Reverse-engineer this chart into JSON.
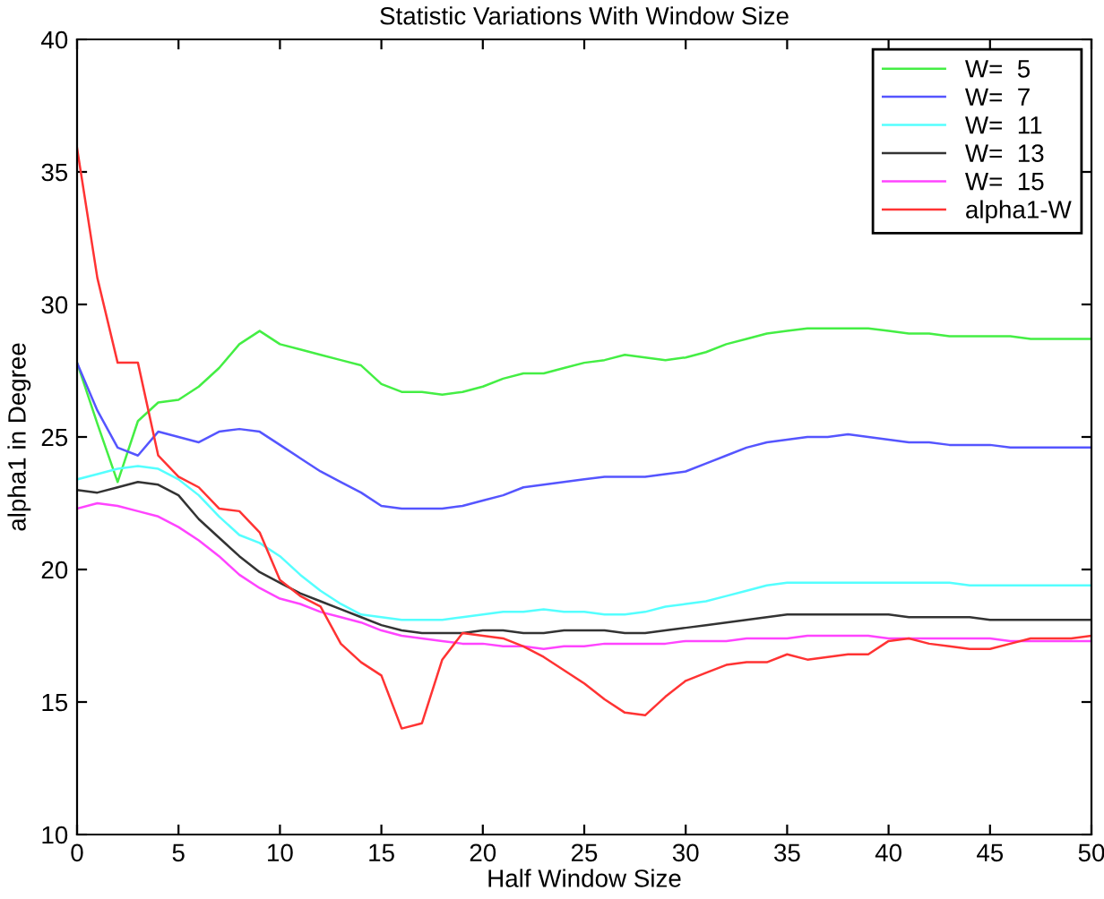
{
  "chart_data": {
    "type": "line",
    "title": "Statistic Variations With Window Size",
    "xlabel": "Half Window Size",
    "ylabel": "alpha1 in Degree",
    "x": [
      0,
      1,
      2,
      3,
      4,
      5,
      6,
      7,
      8,
      9,
      10,
      11,
      12,
      13,
      14,
      15,
      16,
      17,
      18,
      19,
      20,
      21,
      22,
      23,
      24,
      25,
      26,
      27,
      28,
      29,
      30,
      31,
      32,
      33,
      34,
      35,
      36,
      37,
      38,
      39,
      40,
      41,
      42,
      43,
      44,
      45,
      46,
      47,
      48,
      49,
      50
    ],
    "xlim": [
      0,
      50
    ],
    "ylim": [
      10,
      40
    ],
    "xticks": [
      0,
      5,
      10,
      15,
      20,
      25,
      30,
      35,
      40,
      45,
      50
    ],
    "yticks": [
      10,
      15,
      20,
      25,
      30,
      35,
      40
    ],
    "grid": false,
    "legend": "top right",
    "marker": "none",
    "line_style": "solid",
    "series": [
      {
        "name": "W=  5",
        "color": "#44ee44",
        "values": [
          27.8,
          25.5,
          23.3,
          25.6,
          26.3,
          26.4,
          26.9,
          27.6,
          28.5,
          29.0,
          28.5,
          28.3,
          28.1,
          27.9,
          27.7,
          27.0,
          26.7,
          26.7,
          26.6,
          26.7,
          26.9,
          27.2,
          27.4,
          27.4,
          27.6,
          27.8,
          27.9,
          28.1,
          28.0,
          27.9,
          28.0,
          28.2,
          28.5,
          28.7,
          28.9,
          29.0,
          29.1,
          29.1,
          29.1,
          29.1,
          29.0,
          28.9,
          28.9,
          28.8,
          28.8,
          28.8,
          28.8,
          28.7,
          28.7,
          28.7,
          28.7
        ]
      },
      {
        "name": "W=  7",
        "color": "#5555ff",
        "values": [
          27.8,
          26.0,
          24.6,
          24.3,
          25.2,
          25.0,
          24.8,
          25.2,
          25.3,
          25.2,
          24.7,
          24.2,
          23.7,
          23.3,
          22.9,
          22.4,
          22.3,
          22.3,
          22.3,
          22.4,
          22.6,
          22.8,
          23.1,
          23.2,
          23.3,
          23.4,
          23.5,
          23.5,
          23.5,
          23.6,
          23.7,
          24.0,
          24.3,
          24.6,
          24.8,
          24.9,
          25.0,
          25.0,
          25.1,
          25.0,
          24.9,
          24.8,
          24.8,
          24.7,
          24.7,
          24.7,
          24.6,
          24.6,
          24.6,
          24.6,
          24.6
        ]
      },
      {
        "name": "W=  11",
        "color": "#55ffff",
        "values": [
          23.4,
          23.6,
          23.8,
          23.9,
          23.8,
          23.4,
          22.8,
          22.0,
          21.3,
          21.0,
          20.5,
          19.8,
          19.2,
          18.7,
          18.3,
          18.2,
          18.1,
          18.1,
          18.1,
          18.2,
          18.3,
          18.4,
          18.4,
          18.5,
          18.4,
          18.4,
          18.3,
          18.3,
          18.4,
          18.6,
          18.7,
          18.8,
          19.0,
          19.2,
          19.4,
          19.5,
          19.5,
          19.5,
          19.5,
          19.5,
          19.5,
          19.5,
          19.5,
          19.5,
          19.4,
          19.4,
          19.4,
          19.4,
          19.4,
          19.4,
          19.4
        ]
      },
      {
        "name": "W=  13",
        "color": "#333333",
        "values": [
          23.0,
          22.9,
          23.1,
          23.3,
          23.2,
          22.8,
          21.9,
          21.2,
          20.5,
          19.9,
          19.5,
          19.1,
          18.8,
          18.5,
          18.2,
          17.9,
          17.7,
          17.6,
          17.6,
          17.6,
          17.7,
          17.7,
          17.6,
          17.6,
          17.7,
          17.7,
          17.7,
          17.6,
          17.6,
          17.7,
          17.8,
          17.9,
          18.0,
          18.1,
          18.2,
          18.3,
          18.3,
          18.3,
          18.3,
          18.3,
          18.3,
          18.2,
          18.2,
          18.2,
          18.2,
          18.1,
          18.1,
          18.1,
          18.1,
          18.1,
          18.1
        ]
      },
      {
        "name": "W=  15",
        "color": "#ff44ff",
        "values": [
          22.3,
          22.5,
          22.4,
          22.2,
          22.0,
          21.6,
          21.1,
          20.5,
          19.8,
          19.3,
          18.9,
          18.7,
          18.4,
          18.2,
          18.0,
          17.7,
          17.5,
          17.4,
          17.3,
          17.2,
          17.2,
          17.1,
          17.1,
          17.0,
          17.1,
          17.1,
          17.2,
          17.2,
          17.2,
          17.2,
          17.3,
          17.3,
          17.3,
          17.4,
          17.4,
          17.4,
          17.5,
          17.5,
          17.5,
          17.5,
          17.4,
          17.4,
          17.4,
          17.4,
          17.4,
          17.4,
          17.3,
          17.3,
          17.3,
          17.3,
          17.3
        ]
      },
      {
        "name": "alpha1-W",
        "color": "#ff3333",
        "values": [
          35.9,
          31.0,
          27.8,
          27.8,
          24.3,
          23.5,
          23.1,
          22.3,
          22.2,
          21.4,
          19.6,
          19.0,
          18.6,
          17.2,
          16.5,
          16.0,
          14.0,
          14.2,
          16.6,
          17.6,
          17.5,
          17.4,
          17.1,
          16.7,
          16.2,
          15.7,
          15.1,
          14.6,
          14.5,
          15.2,
          15.8,
          16.1,
          16.4,
          16.5,
          16.5,
          16.8,
          16.6,
          16.7,
          16.8,
          16.8,
          17.3,
          17.4,
          17.2,
          17.1,
          17.0,
          17.0,
          17.2,
          17.4,
          17.4,
          17.4,
          17.5
        ]
      }
    ]
  }
}
